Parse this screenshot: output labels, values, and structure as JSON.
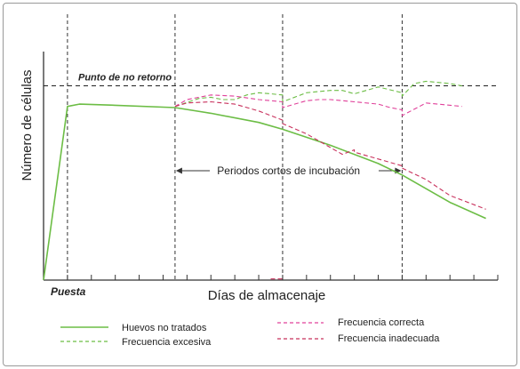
{
  "chart_data": {
    "type": "line",
    "title": "",
    "ylabel": "Número de células",
    "xlabel": "Días de almacenaje",
    "x_origin_label": "Puesta",
    "threshold_label": "Punto de no retorno",
    "threshold_y": 85,
    "incubation_label": "Periodos cortos de incubación",
    "xlim": [
      0,
      19
    ],
    "ylim": [
      0,
      100
    ],
    "x_ticks": [
      1,
      2,
      3,
      4,
      5,
      6,
      7,
      8,
      9,
      10,
      11,
      12,
      13,
      14,
      15,
      16,
      17,
      18,
      19
    ],
    "vlines": [
      1,
      5.5,
      10,
      15
    ],
    "incubation_span": [
      5.5,
      15
    ],
    "legend": [
      {
        "name": "Huevos no tratados",
        "color": "#6cbd45",
        "dash": "solid",
        "key": "untreated"
      },
      {
        "name": "Frecuencia excesiva",
        "color": "#6cbd45",
        "dash": "dashed",
        "key": "excessive"
      },
      {
        "name": "Frecuencia correcta",
        "color": "#e0409a",
        "dash": "dashed",
        "key": "correct"
      },
      {
        "name": "Frecuencia inadecuada",
        "color": "#c8305c",
        "dash": "dashed",
        "key": "inadequate"
      }
    ],
    "series": [
      {
        "key": "untreated",
        "color": "#6cbd45",
        "dash": "solid",
        "x": [
          0,
          1,
          1.5,
          3,
          5.5,
          7,
          9,
          10,
          12,
          14,
          15,
          17,
          18.5
        ],
        "y": [
          0,
          76,
          77,
          76.5,
          75.5,
          73,
          69,
          66,
          59,
          51,
          46,
          34,
          27
        ]
      },
      {
        "key": "excessive",
        "color": "#6cbd45",
        "dash": "dashed",
        "x": [
          5.5,
          6.5,
          7,
          7.5,
          8,
          8.5,
          9,
          9.5,
          10,
          10,
          11,
          12,
          12.5,
          13,
          13.5,
          14,
          15,
          15,
          15.5,
          16,
          17,
          17.5
        ],
        "y": [
          76,
          79.5,
          80,
          79,
          79,
          81,
          82,
          81.5,
          81,
          78,
          82,
          83,
          83,
          81.5,
          83,
          84.5,
          82,
          80.5,
          86,
          87,
          86,
          85
        ]
      },
      {
        "key": "correct",
        "color": "#e0409a",
        "dash": "dashed",
        "x": [
          5.5,
          6,
          7,
          8,
          9,
          10,
          10,
          11,
          11.5,
          12,
          13,
          14,
          14.5,
          15,
          15,
          16,
          17.5
        ],
        "y": [
          76,
          79,
          81,
          80.5,
          79,
          78,
          75.5,
          78.5,
          79,
          79,
          78,
          77,
          75.5,
          74.5,
          72,
          77.5,
          76
        ]
      },
      {
        "key": "inadequate",
        "color": "#c8305c",
        "dash": "dashed",
        "x": [
          5.5,
          6,
          7,
          8,
          9,
          10,
          10,
          11,
          12,
          12.5,
          13,
          13,
          14,
          15,
          15,
          16,
          17,
          18.5
        ],
        "y": [
          76,
          77.5,
          78,
          77,
          74,
          70,
          68.5,
          64,
          58,
          55,
          57,
          56,
          53,
          50,
          49,
          44,
          37,
          31
        ]
      },
      {
        "key": "inadequate",
        "color": "#c8305c",
        "dash": "dashed",
        "x": [
          9.5,
          10
        ],
        "y": [
          0.5,
          0.5
        ]
      }
    ]
  }
}
